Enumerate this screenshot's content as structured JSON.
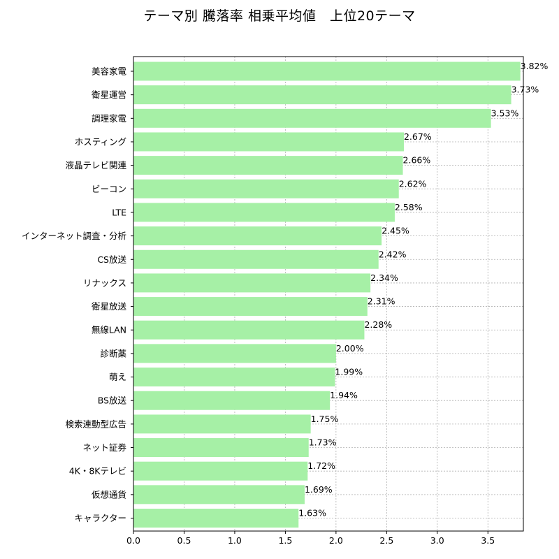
{
  "chart_data": {
    "type": "bar",
    "orientation": "horizontal",
    "title": "テーマ別 騰落率 相乗平均値　上位20テーマ",
    "xlabel": "",
    "ylabel": "",
    "xlim": [
      0,
      3.85
    ],
    "xticks": [
      "0.0",
      "0.5",
      "1.0",
      "1.5",
      "2.0",
      "2.5",
      "3.0",
      "3.5"
    ],
    "grid": true,
    "bar_color": "#a6f0a6",
    "categories": [
      "美容家電",
      "衛星運営",
      "調理家電",
      "ホスティング",
      "液晶テレビ関連",
      "ビーコン",
      "LTE",
      "インターネット調査・分析",
      "CS放送",
      "リナックス",
      "衛星放送",
      "無線LAN",
      "診断薬",
      "萌え",
      "BS放送",
      "検索連動型広告",
      "ネット証券",
      "4K・8Kテレビ",
      "仮想通貨",
      "キャラクター"
    ],
    "values": [
      3.82,
      3.73,
      3.53,
      2.67,
      2.66,
      2.62,
      2.58,
      2.45,
      2.42,
      2.34,
      2.31,
      2.28,
      2.0,
      1.99,
      1.94,
      1.75,
      1.73,
      1.72,
      1.69,
      1.63
    ],
    "data_labels": [
      "3.82%",
      "3.73%",
      "3.53%",
      "2.67%",
      "2.66%",
      "2.62%",
      "2.58%",
      "2.45%",
      "2.42%",
      "2.34%",
      "2.31%",
      "2.28%",
      "2.00%",
      "1.99%",
      "1.94%",
      "1.75%",
      "1.73%",
      "1.72%",
      "1.69%",
      "1.63%"
    ]
  }
}
